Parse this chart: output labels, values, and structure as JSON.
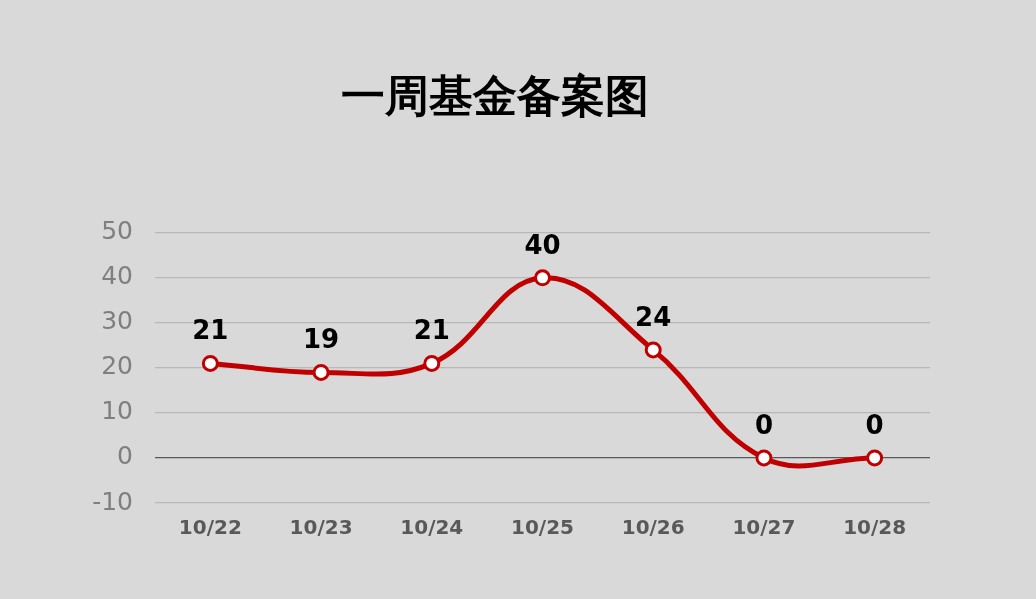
{
  "chart_data": {
    "type": "line",
    "title": "一周基金备案图",
    "categories": [
      "10/22",
      "10/23",
      "10/24",
      "10/25",
      "10/26",
      "10/27",
      "10/28"
    ],
    "series": [
      {
        "color": "#c00000",
        "values": [
          21,
          19,
          21,
          40,
          24,
          0,
          0
        ]
      }
    ],
    "ylim": [
      -10,
      50
    ],
    "yticks": [
      -10,
      0,
      10,
      20,
      30,
      40,
      50
    ],
    "grid": "y",
    "marker": "circle",
    "data_labels": true
  }
}
